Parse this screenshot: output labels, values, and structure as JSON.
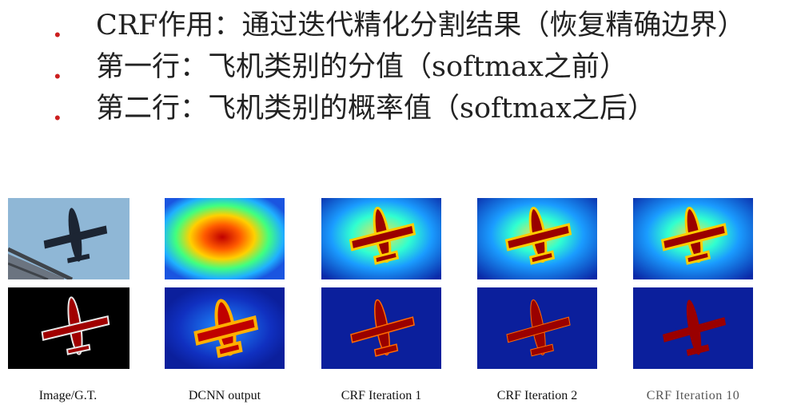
{
  "bullets": [
    {
      "text": "CRF作用：通过迭代精化分割结果（恢复精确边界）"
    },
    {
      "text": "第一行：飞机类别的分值（softmax之前）"
    },
    {
      "text": "第二行：飞机类别的概率值（softmax之后）"
    }
  ],
  "figure": {
    "captions": [
      "Image/G.T.",
      "DCNN output",
      "CRF Iteration 1",
      "CRF Iteration 2",
      "CRF Iteration 10"
    ],
    "rows": [
      "score",
      "probability"
    ],
    "colors": {
      "background_low": "#0b1f9c",
      "mid": "#1f8fff",
      "hot": "#a00000",
      "sky": "#8fb7d6",
      "black": "#000000"
    }
  }
}
